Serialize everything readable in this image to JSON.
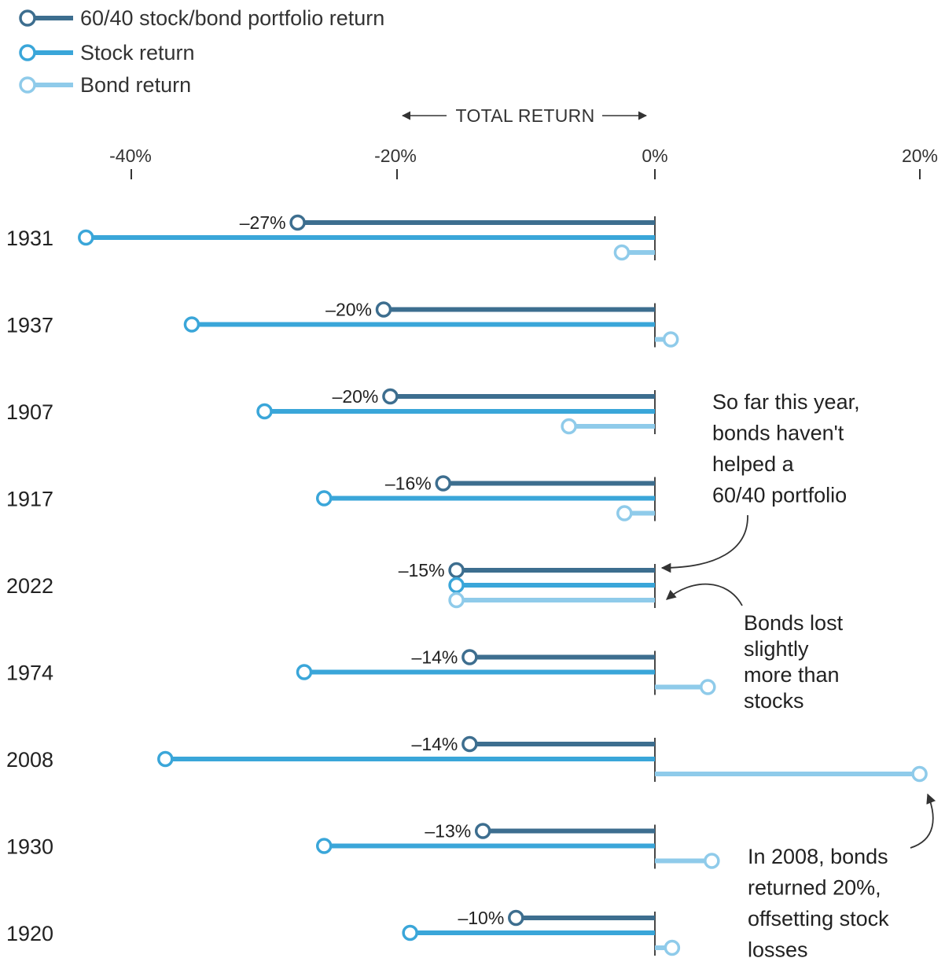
{
  "colors": {
    "portfolio": "#3d6e8f",
    "stock": "#3aa6d9",
    "bond": "#8fcbea",
    "text": "#222222",
    "axis": "#333333"
  },
  "chart_data": {
    "type": "bar",
    "orientation": "horizontal",
    "axis_title": "TOTAL RETURN",
    "x_ticks": [
      {
        "value": -40,
        "label": "-40%"
      },
      {
        "value": -20,
        "label": "-20%"
      },
      {
        "value": 0,
        "label": "0%"
      },
      {
        "value": 20,
        "label": "20%"
      }
    ],
    "xlim": [
      -40,
      20
    ],
    "grid": false,
    "legend_position": "top-left",
    "categories": [
      "1931",
      "1937",
      "1907",
      "1917",
      "2022",
      "1974",
      "2008",
      "1930",
      "1920"
    ],
    "series": [
      {
        "key": "portfolio",
        "name": "60/40 stock/bond portfolio return",
        "values": [
          -27,
          -20.5,
          -20,
          -16,
          -15,
          -14,
          -14,
          -13,
          -10.5
        ],
        "labels": [
          "–27%",
          "–20%",
          "–20%",
          "–16%",
          "–15%",
          "–14%",
          "–14%",
          "–13%",
          "–10%"
        ]
      },
      {
        "key": "stock",
        "name": "Stock return",
        "values": [
          -43,
          -35,
          -29.5,
          -25,
          -15,
          -26.5,
          -37,
          -25,
          -18.5
        ]
      },
      {
        "key": "bond",
        "name": "Bond return",
        "values": [
          -2.5,
          1.2,
          -6.5,
          -2.3,
          -15,
          4,
          20,
          4.3,
          1.3
        ]
      }
    ],
    "annotations": [
      {
        "key": "so_far",
        "lines": [
          "So far this year,",
          "bonds haven't",
          "helped a",
          "60/40 portfolio"
        ]
      },
      {
        "key": "bonds_lost",
        "lines": [
          "Bonds lost",
          "slightly",
          "more than",
          "stocks"
        ]
      },
      {
        "key": "in_2008",
        "lines": [
          "In 2008, bonds",
          "returned 20%,",
          "offsetting stock",
          "losses"
        ]
      }
    ]
  }
}
